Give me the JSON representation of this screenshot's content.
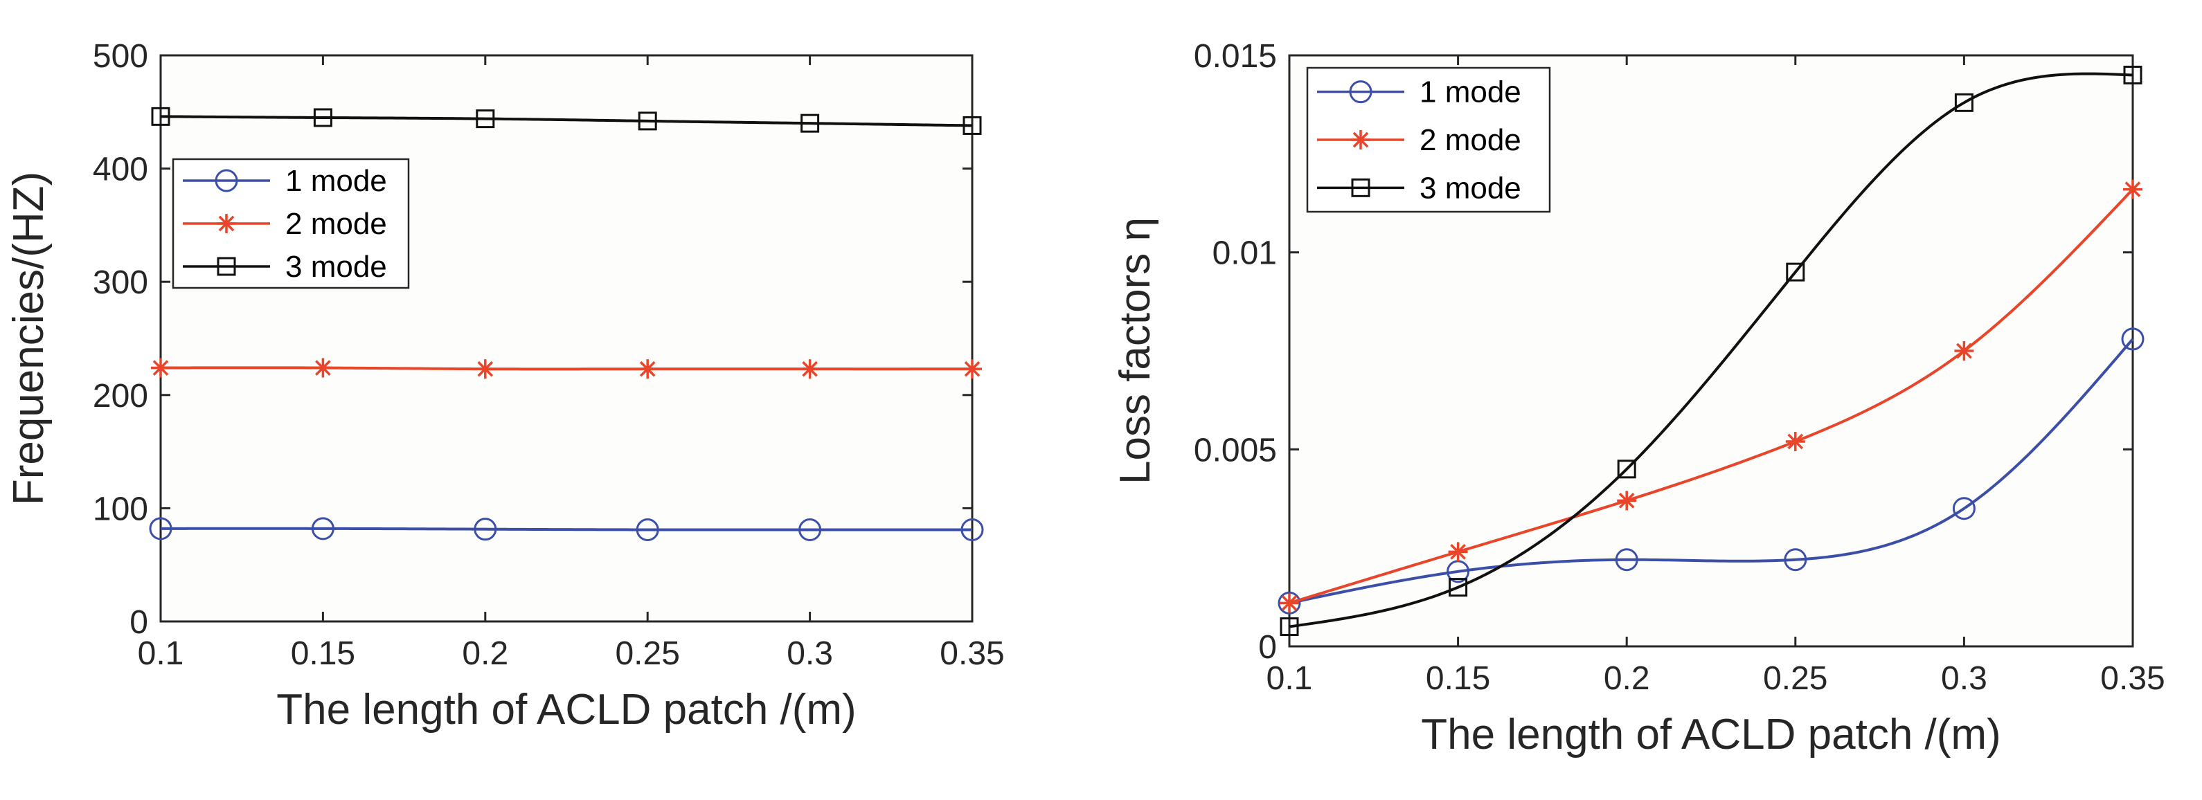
{
  "chart_data": [
    {
      "type": "line",
      "title": "",
      "xlabel": "The length of ACLD patch  /(m)",
      "ylabel": "Frequencies/(HZ)",
      "xlim": [
        0.1,
        0.35
      ],
      "ylim": [
        0,
        500
      ],
      "xticks": [
        0.1,
        0.15,
        0.2,
        0.25,
        0.3,
        0.35
      ],
      "xtick_labels": [
        "0.1",
        "0.15",
        "0.2",
        "0.25",
        "0.3",
        "0.35"
      ],
      "yticks": [
        0,
        100,
        200,
        300,
        400,
        500
      ],
      "ytick_labels": [
        "0",
        "100",
        "200",
        "300",
        "400",
        "500"
      ],
      "legend_position": "upper-left",
      "x": [
        0.1,
        0.15,
        0.2,
        0.25,
        0.3,
        0.35
      ],
      "series": [
        {
          "name": "1 mode",
          "marker": "circle",
          "color": "#3b4fa8",
          "values": [
            82,
            82,
            81.5,
            81,
            81,
            81
          ]
        },
        {
          "name": "2 mode",
          "marker": "asterisk",
          "color": "#e8452a",
          "values": [
            224,
            224,
            223,
            223,
            223,
            223
          ]
        },
        {
          "name": "3 mode",
          "marker": "square",
          "color": "#111111",
          "values": [
            446,
            445,
            444,
            442,
            440,
            438
          ]
        }
      ]
    },
    {
      "type": "line",
      "title": "",
      "xlabel": "The length of ACLD patch  /(m)",
      "ylabel": "Loss factors η",
      "xlim": [
        0.1,
        0.35
      ],
      "ylim": [
        0,
        0.015
      ],
      "xticks": [
        0.1,
        0.15,
        0.2,
        0.25,
        0.3,
        0.35
      ],
      "xtick_labels": [
        "0.1",
        "0.15",
        "0.2",
        "0.25",
        "0.3",
        "0.35"
      ],
      "yticks": [
        0,
        0.005,
        0.01,
        0.015
      ],
      "ytick_labels": [
        "0",
        "0.005",
        "0.01",
        "0.015"
      ],
      "legend_position": "upper-left",
      "x": [
        0.1,
        0.15,
        0.2,
        0.25,
        0.3,
        0.35
      ],
      "series": [
        {
          "name": "1 mode",
          "marker": "circle",
          "color": "#3b4fa8",
          "values": [
            0.0011,
            0.0019,
            0.0022,
            0.0022,
            0.0035,
            0.0078
          ]
        },
        {
          "name": "2 mode",
          "marker": "asterisk",
          "color": "#e8452a",
          "values": [
            0.0011,
            0.0024,
            0.0037,
            0.0052,
            0.0075,
            0.0116
          ]
        },
        {
          "name": "3 mode",
          "marker": "square",
          "color": "#111111",
          "values": [
            0.0005,
            0.0015,
            0.0045,
            0.0095,
            0.0138,
            0.0145
          ]
        }
      ]
    }
  ]
}
